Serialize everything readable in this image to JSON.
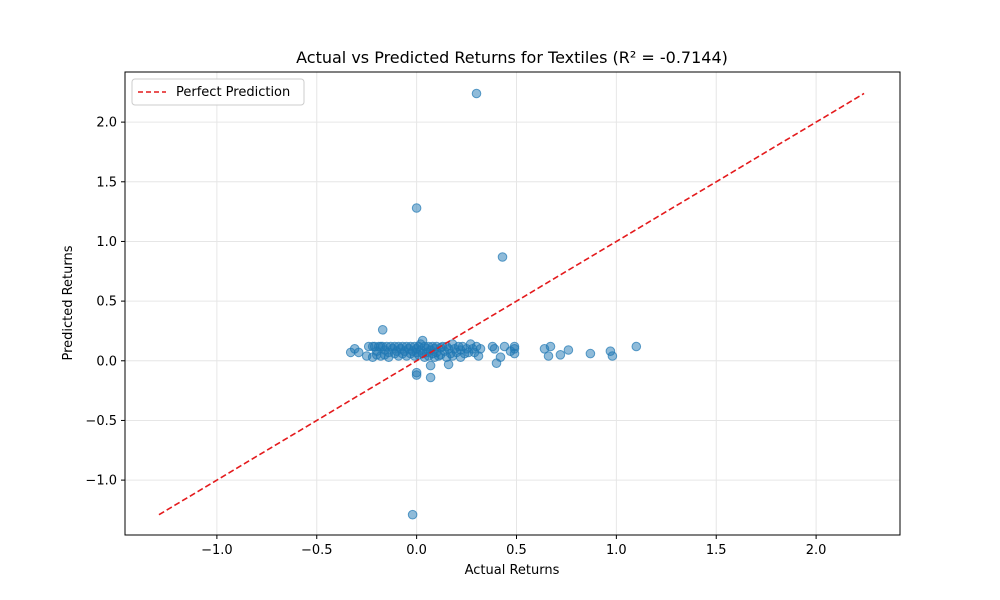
{
  "chart_data": {
    "type": "scatter",
    "title": "Actual vs Predicted Returns for Textiles (R² = -0.7144)",
    "xlabel": "Actual Returns",
    "ylabel": "Predicted Returns",
    "xlim": [
      -1.46,
      2.42
    ],
    "ylim": [
      -1.46,
      2.42
    ],
    "xticks": [
      -1.0,
      -0.5,
      0.0,
      0.5,
      1.0,
      1.5,
      2.0
    ],
    "yticks": [
      -1.0,
      -0.5,
      0.0,
      0.5,
      1.0,
      1.5,
      2.0
    ],
    "xtick_labels": [
      "−1.0",
      "−0.5",
      "0.0",
      "0.5",
      "1.0",
      "1.5",
      "2.0"
    ],
    "ytick_labels": [
      "−1.0",
      "−0.5",
      "0.0",
      "0.5",
      "1.0",
      "1.5",
      "2.0"
    ],
    "grid": true,
    "legend_position": "top-left",
    "colors": {
      "points": "#1f77b4",
      "reference_line": "#e41a1c"
    },
    "reference_line": {
      "name": "Perfect Prediction",
      "x": [
        -1.29,
        2.24
      ],
      "y": [
        -1.29,
        2.24
      ]
    },
    "series": [
      {
        "points": [
          [
            0.3,
            2.24
          ],
          [
            0.0,
            1.28
          ],
          [
            0.43,
            0.87
          ],
          [
            -0.17,
            0.26
          ],
          [
            -0.02,
            -1.29
          ],
          [
            -0.33,
            0.07
          ],
          [
            -0.31,
            0.1
          ],
          [
            -0.29,
            0.07
          ],
          [
            -0.25,
            0.04
          ],
          [
            -0.24,
            0.12
          ],
          [
            -0.22,
            0.12
          ],
          [
            -0.22,
            0.03
          ],
          [
            -0.21,
            0.12
          ],
          [
            -0.2,
            0.08
          ],
          [
            -0.2,
            0.05
          ],
          [
            -0.19,
            0.12
          ],
          [
            -0.18,
            0.12
          ],
          [
            -0.18,
            0.04
          ],
          [
            -0.17,
            0.12
          ],
          [
            -0.16,
            0.09
          ],
          [
            -0.16,
            0.05
          ],
          [
            -0.15,
            0.12
          ],
          [
            -0.14,
            0.07
          ],
          [
            -0.14,
            0.03
          ],
          [
            -0.13,
            0.12
          ],
          [
            -0.12,
            0.1
          ],
          [
            -0.11,
            0.06
          ],
          [
            -0.11,
            0.12
          ],
          [
            -0.1,
            0.08
          ],
          [
            -0.09,
            0.04
          ],
          [
            -0.09,
            0.12
          ],
          [
            -0.08,
            0.1
          ],
          [
            -0.07,
            0.06
          ],
          [
            -0.07,
            0.12
          ],
          [
            -0.06,
            0.08
          ],
          [
            -0.05,
            0.12
          ],
          [
            -0.05,
            0.04
          ],
          [
            -0.04,
            0.1
          ],
          [
            -0.03,
            0.06
          ],
          [
            -0.03,
            0.12
          ],
          [
            -0.02,
            0.08
          ],
          [
            -0.01,
            0.12
          ],
          [
            -0.01,
            0.04
          ],
          [
            0.0,
            0.1
          ],
          [
            0.0,
            0.07
          ],
          [
            0.01,
            0.12
          ],
          [
            0.01,
            0.05
          ],
          [
            0.02,
            0.14
          ],
          [
            0.02,
            0.09
          ],
          [
            0.03,
            0.17
          ],
          [
            0.03,
            0.06
          ],
          [
            0.04,
            0.12
          ],
          [
            0.04,
            0.03
          ],
          [
            0.05,
            0.1
          ],
          [
            0.05,
            0.07
          ],
          [
            0.06,
            0.12
          ],
          [
            0.06,
            0.04
          ],
          [
            0.07,
            0.09
          ],
          [
            0.08,
            0.12
          ],
          [
            0.08,
            0.06
          ],
          [
            0.09,
            0.1
          ],
          [
            0.09,
            0.03
          ],
          [
            0.1,
            0.12
          ],
          [
            0.1,
            0.07
          ],
          [
            0.11,
            0.04
          ],
          [
            0.12,
            0.11
          ],
          [
            0.12,
            0.05
          ],
          [
            0.13,
            0.12
          ],
          [
            0.14,
            0.08
          ],
          [
            0.15,
            0.12
          ],
          [
            0.15,
            0.03
          ],
          [
            0.16,
            0.1
          ],
          [
            0.17,
            0.06
          ],
          [
            0.18,
            0.14
          ],
          [
            0.18,
            0.04
          ],
          [
            0.19,
            0.1
          ],
          [
            0.2,
            0.07
          ],
          [
            0.21,
            0.12
          ],
          [
            0.22,
            0.09
          ],
          [
            0.22,
            0.03
          ],
          [
            0.23,
            0.12
          ],
          [
            0.24,
            0.06
          ],
          [
            0.25,
            0.1
          ],
          [
            0.26,
            0.07
          ],
          [
            0.27,
            0.14
          ],
          [
            0.28,
            0.1
          ],
          [
            0.29,
            0.07
          ],
          [
            0.3,
            0.12
          ],
          [
            0.31,
            0.04
          ],
          [
            0.32,
            0.1
          ],
          [
            0.38,
            0.12
          ],
          [
            0.39,
            0.1
          ],
          [
            0.4,
            -0.02
          ],
          [
            0.42,
            0.03
          ],
          [
            0.44,
            0.12
          ],
          [
            0.47,
            0.08
          ],
          [
            0.49,
            0.12
          ],
          [
            0.49,
            0.1
          ],
          [
            0.49,
            0.06
          ],
          [
            0.64,
            0.1
          ],
          [
            0.66,
            0.04
          ],
          [
            0.67,
            0.12
          ],
          [
            0.72,
            0.05
          ],
          [
            0.76,
            0.09
          ],
          [
            0.87,
            0.06
          ],
          [
            0.97,
            0.08
          ],
          [
            0.98,
            0.04
          ],
          [
            1.1,
            0.12
          ],
          [
            0.0,
            -0.1
          ],
          [
            0.0,
            -0.12
          ],
          [
            0.07,
            -0.04
          ],
          [
            0.07,
            -0.14
          ],
          [
            0.16,
            -0.03
          ]
        ]
      }
    ]
  }
}
